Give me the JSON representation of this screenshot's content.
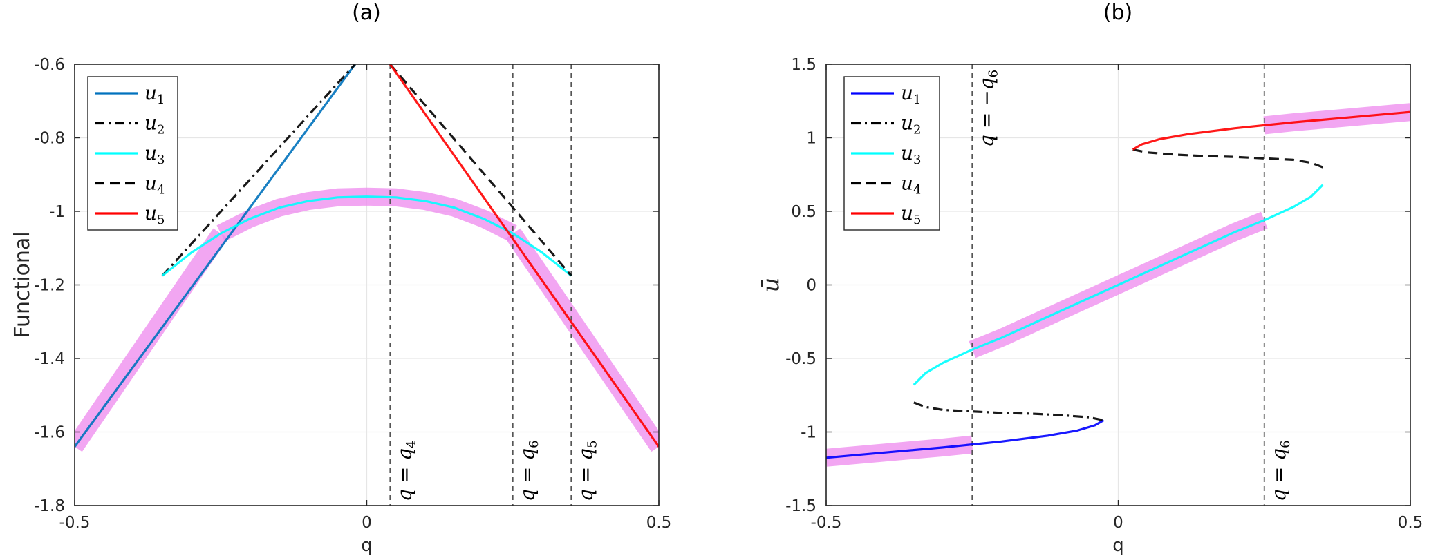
{
  "chart_data": [
    {
      "type": "line",
      "panel_label": "(a)",
      "xlabel": "q",
      "ylabel": "Functional",
      "xlim": [
        -0.5,
        0.5
      ],
      "ylim": [
        -1.8,
        -0.6
      ],
      "xticks": [
        -0.5,
        0,
        0.5
      ],
      "xtick_labels": [
        "-0.5",
        "0",
        "0.5"
      ],
      "yticks": [
        -1.8,
        -1.6,
        -1.4,
        -1.2,
        -1.0,
        -0.8,
        -0.6
      ],
      "ytick_labels": [
        "-1.8",
        "-1.6",
        "-1.4",
        "-1.2",
        "-1",
        "-0.8",
        "-0.6"
      ],
      "grid": true,
      "legend_position": "top-left",
      "highlight_color": "#ee88ee",
      "series": [
        {
          "name": "u1",
          "label_base": "u",
          "label_sub": "1",
          "color": "#0072BD",
          "dash": "solid",
          "x": [
            -0.5,
            -0.02
          ],
          "y": [
            -1.64,
            -0.6
          ]
        },
        {
          "name": "u2",
          "label_base": "u",
          "label_sub": "2",
          "color": "#000000",
          "dash": "dashdot",
          "x": [
            -0.35,
            -0.02
          ],
          "y": [
            -1.175,
            -0.6
          ]
        },
        {
          "name": "u3",
          "label_base": "u",
          "label_sub": "3",
          "color": "#00FFFF",
          "dash": "solid",
          "x": [
            -0.35,
            -0.3,
            -0.25,
            -0.2,
            -0.15,
            -0.1,
            -0.05,
            0.0,
            0.05,
            0.1,
            0.15,
            0.2,
            0.25,
            0.3,
            0.35
          ],
          "y": [
            -1.175,
            -1.112,
            -1.06,
            -1.02,
            -0.99,
            -0.972,
            -0.962,
            -0.96,
            -0.962,
            -0.972,
            -0.99,
            -1.02,
            -1.06,
            -1.112,
            -1.175
          ]
        },
        {
          "name": "u4",
          "label_base": "u",
          "label_sub": "4",
          "color": "#000000",
          "dash": "dash",
          "x": [
            0.04,
            0.35
          ],
          "y": [
            -0.6,
            -1.175
          ]
        },
        {
          "name": "u5",
          "label_base": "u",
          "label_sub": "5",
          "color": "#FF0000",
          "dash": "solid",
          "x": [
            0.04,
            0.5
          ],
          "y": [
            -0.6,
            -1.64
          ]
        }
      ],
      "highlights": [
        {
          "x": [
            -0.5,
            -0.25
          ],
          "y": [
            -1.64,
            -1.06
          ]
        },
        {
          "x": [
            -0.25,
            -0.2,
            -0.15,
            -0.1,
            -0.05,
            0.0,
            0.05,
            0.1,
            0.15,
            0.2,
            0.25
          ],
          "y": [
            -1.06,
            -1.02,
            -0.99,
            -0.972,
            -0.962,
            -0.96,
            -0.962,
            -0.972,
            -0.99,
            -1.02,
            -1.06
          ]
        },
        {
          "x": [
            0.25,
            0.5
          ],
          "y": [
            -1.06,
            -1.64
          ]
        }
      ],
      "vlines": [
        {
          "x": 0.04,
          "label_lhs": "q",
          "label_rhs": "q",
          "label_sub": "4",
          "label_sign": ""
        },
        {
          "x": 0.25,
          "label_lhs": "q",
          "label_rhs": "q",
          "label_sub": "6",
          "label_sign": ""
        },
        {
          "x": 0.35,
          "label_lhs": "q",
          "label_rhs": "q",
          "label_sub": "5",
          "label_sign": ""
        }
      ]
    },
    {
      "type": "line",
      "panel_label": "(b)",
      "xlabel": "q",
      "ylabel": "ū",
      "xlim": [
        -0.5,
        0.5
      ],
      "ylim": [
        -1.5,
        1.5
      ],
      "xticks": [
        -0.5,
        0,
        0.5
      ],
      "xtick_labels": [
        "-0.5",
        "0",
        "0.5"
      ],
      "yticks": [
        -1.5,
        -1.0,
        -0.5,
        0,
        0.5,
        1.0,
        1.5
      ],
      "ytick_labels": [
        "-1.5",
        "-1",
        "-0.5",
        "0",
        "0.5",
        "1",
        "1.5"
      ],
      "grid": true,
      "legend_position": "top-left",
      "highlight_color": "#ee88ee",
      "series": [
        {
          "name": "u1",
          "label_base": "u",
          "label_sub": "1",
          "color": "#0000FF",
          "dash": "solid",
          "x": [
            -0.5,
            -0.4,
            -0.3,
            -0.2,
            -0.12,
            -0.07,
            -0.04,
            -0.025
          ],
          "y": [
            -1.175,
            -1.14,
            -1.105,
            -1.065,
            -1.025,
            -0.99,
            -0.955,
            -0.92
          ]
        },
        {
          "name": "u2",
          "label_base": "u",
          "label_sub": "2",
          "color": "#000000",
          "dash": "dashdot",
          "x": [
            -0.35,
            -0.33,
            -0.3,
            -0.25,
            -0.2,
            -0.15,
            -0.1,
            -0.05,
            -0.025
          ],
          "y": [
            -0.8,
            -0.83,
            -0.85,
            -0.86,
            -0.87,
            -0.875,
            -0.885,
            -0.9,
            -0.92
          ]
        },
        {
          "name": "u3",
          "label_base": "u",
          "label_sub": "3",
          "color": "#00FFFF",
          "dash": "solid",
          "x": [
            -0.35,
            -0.33,
            -0.3,
            -0.25,
            -0.2,
            -0.1,
            0.0,
            0.1,
            0.2,
            0.25,
            0.3,
            0.33,
            0.35
          ],
          "y": [
            -0.68,
            -0.6,
            -0.53,
            -0.44,
            -0.36,
            -0.18,
            0.0,
            0.18,
            0.36,
            0.44,
            0.53,
            0.6,
            0.68
          ]
        },
        {
          "name": "u4",
          "label_base": "u",
          "label_sub": "4",
          "color": "#000000",
          "dash": "dash",
          "x": [
            0.025,
            0.05,
            0.1,
            0.15,
            0.2,
            0.25,
            0.3,
            0.33,
            0.35
          ],
          "y": [
            0.92,
            0.9,
            0.885,
            0.875,
            0.87,
            0.86,
            0.85,
            0.83,
            0.8
          ]
        },
        {
          "name": "u5",
          "label_base": "u",
          "label_sub": "5",
          "color": "#FF0000",
          "dash": "solid",
          "x": [
            0.025,
            0.04,
            0.07,
            0.12,
            0.2,
            0.3,
            0.4,
            0.5
          ],
          "y": [
            0.92,
            0.955,
            0.99,
            1.025,
            1.065,
            1.105,
            1.14,
            1.175
          ]
        }
      ],
      "highlights": [
        {
          "x": [
            -0.5,
            -0.4,
            -0.3,
            -0.25
          ],
          "y": [
            -1.175,
            -1.14,
            -1.105,
            -1.085
          ]
        },
        {
          "x": [
            -0.25,
            -0.2,
            -0.1,
            0.0,
            0.1,
            0.2,
            0.25
          ],
          "y": [
            -0.44,
            -0.36,
            -0.18,
            0.0,
            0.18,
            0.36,
            0.44
          ]
        },
        {
          "x": [
            0.25,
            0.3,
            0.4,
            0.5
          ],
          "y": [
            1.085,
            1.105,
            1.14,
            1.175
          ]
        }
      ],
      "vlines": [
        {
          "x": -0.25,
          "label_lhs": "q",
          "label_rhs": "q",
          "label_sub": "6",
          "label_sign": "−"
        },
        {
          "x": 0.25,
          "label_lhs": "q",
          "label_rhs": "q",
          "label_sub": "6",
          "label_sign": ""
        }
      ]
    }
  ]
}
